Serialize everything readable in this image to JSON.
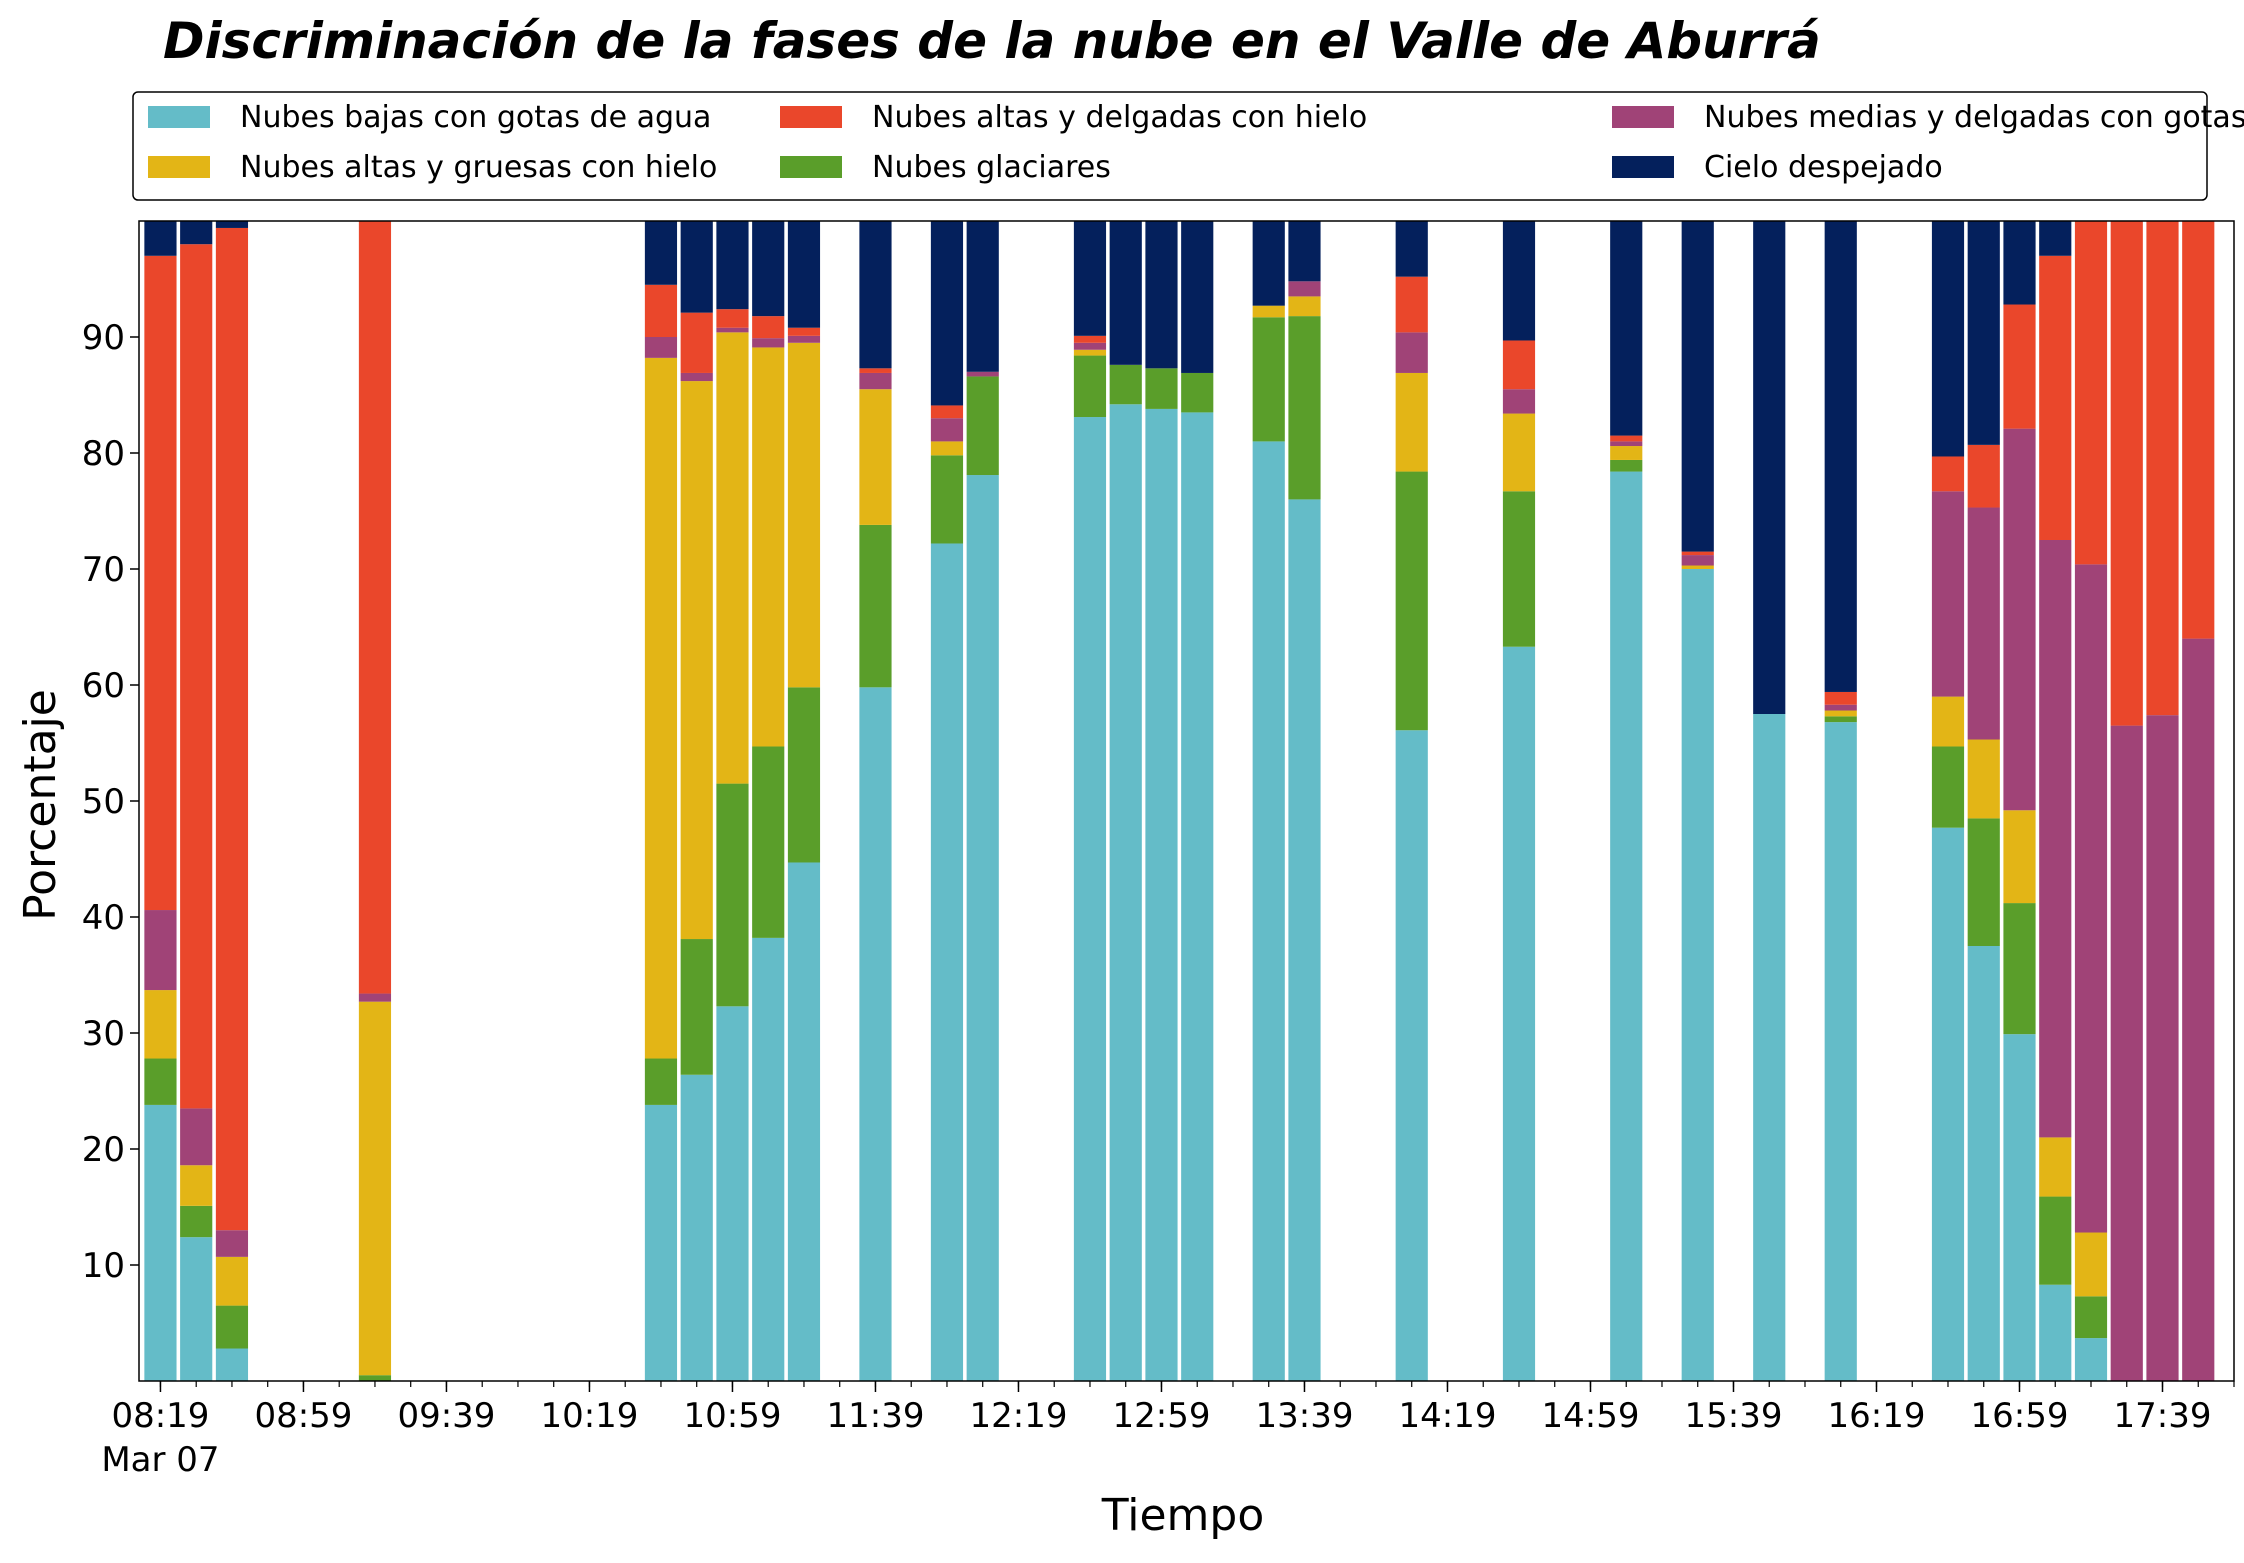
{
  "chart_data": {
    "type": "bar",
    "stacked": true,
    "title": "Discriminación de la fases de la nube en el Valle de Aburrá",
    "xlabel": "Tiempo",
    "ylabel": "Porcentaje",
    "ylim": [
      0,
      100
    ],
    "yticks": [
      10,
      20,
      30,
      40,
      50,
      60,
      70,
      80,
      90
    ],
    "xlim_minutes_from_0819": [
      -6,
      580
    ],
    "xticks": [
      {
        "minutes": 0,
        "label": "08:19",
        "sublabel": "Mar 07"
      },
      {
        "minutes": 40,
        "label": "08:59"
      },
      {
        "minutes": 80,
        "label": "09:39"
      },
      {
        "minutes": 120,
        "label": "10:19"
      },
      {
        "minutes": 160,
        "label": "10:59"
      },
      {
        "minutes": 200,
        "label": "11:39"
      },
      {
        "minutes": 240,
        "label": "12:19"
      },
      {
        "minutes": 280,
        "label": "12:59"
      },
      {
        "minutes": 320,
        "label": "13:39"
      },
      {
        "minutes": 360,
        "label": "14:19"
      },
      {
        "minutes": 400,
        "label": "14:59"
      },
      {
        "minutes": 440,
        "label": "15:39"
      },
      {
        "minutes": 480,
        "label": "16:19"
      },
      {
        "minutes": 520,
        "label": "16:59"
      },
      {
        "minutes": 560,
        "label": "17:39"
      }
    ],
    "minor_tick_step_minutes": 10,
    "bar_width_minutes": 9,
    "legend": {
      "placement": "top, above plot",
      "columns": 3
    },
    "series": [
      {
        "name": "Nubes bajas con gotas de agua",
        "color": "#64bcc8"
      },
      {
        "name": "Nubes glaciares",
        "color": "#5a9e2a"
      },
      {
        "name": "Nubes altas y gruesas con hielo",
        "color": "#e3b516"
      },
      {
        "name": "Nubes medias y delgadas con gotas de agua",
        "color": "#a04377"
      },
      {
        "name": "Nubes altas y delgadas con hielo",
        "color": "#ea472b"
      },
      {
        "name": "Cielo despejado",
        "color": "#04205c"
      }
    ],
    "legend_order": [
      0,
      2,
      4,
      1,
      3,
      5
    ],
    "time_column": "Tiempo",
    "bars": [
      {
        "time": "08:19",
        "values": [
          23.8,
          4.0,
          5.9,
          6.9,
          56.4,
          3.0
        ]
      },
      {
        "time": "08:29",
        "values": [
          12.4,
          2.7,
          3.5,
          4.9,
          74.5,
          2.0
        ]
      },
      {
        "time": "08:39",
        "values": [
          2.8,
          3.7,
          4.2,
          2.3,
          86.4,
          0.6
        ]
      },
      {
        "time": "08:59",
        "values": [
          0.0,
          0.0,
          0.0,
          0.0,
          0.0,
          0.0
        ]
      },
      {
        "time": "09:19",
        "values": [
          0.0,
          0.5,
          32.2,
          0.7,
          66.6,
          0.0
        ]
      },
      {
        "time": "10:39",
        "values": [
          23.8,
          4.0,
          60.4,
          1.8,
          4.5,
          5.5
        ]
      },
      {
        "time": "10:49",
        "values": [
          26.4,
          11.7,
          48.1,
          0.7,
          5.2,
          7.9
        ]
      },
      {
        "time": "10:59",
        "values": [
          32.3,
          19.2,
          38.9,
          0.4,
          1.6,
          7.6
        ]
      },
      {
        "time": "11:09",
        "values": [
          38.2,
          16.5,
          34.4,
          0.8,
          1.9,
          8.2
        ]
      },
      {
        "time": "11:19",
        "values": [
          44.7,
          15.1,
          29.7,
          0.6,
          0.7,
          9.2
        ]
      },
      {
        "time": "11:39",
        "values": [
          59.8,
          14.0,
          11.7,
          1.4,
          0.4,
          12.7
        ]
      },
      {
        "time": "11:59",
        "values": [
          72.2,
          7.6,
          1.2,
          2.0,
          1.1,
          15.9
        ]
      },
      {
        "time": "12:09",
        "values": [
          78.1,
          8.5,
          0.0,
          0.4,
          0.0,
          13.0
        ]
      },
      {
        "time": "12:39",
        "values": [
          83.1,
          5.3,
          0.5,
          0.6,
          0.6,
          9.9
        ]
      },
      {
        "time": "12:49",
        "values": [
          84.2,
          3.4,
          0.0,
          0.0,
          0.0,
          12.4
        ]
      },
      {
        "time": "12:59",
        "values": [
          83.8,
          3.5,
          0.0,
          0.0,
          0.0,
          12.7
        ]
      },
      {
        "time": "13:09",
        "values": [
          83.5,
          3.4,
          0.0,
          0.0,
          0.0,
          13.1
        ]
      },
      {
        "time": "13:29",
        "values": [
          81.0,
          10.7,
          1.0,
          0.0,
          0.0,
          7.3
        ]
      },
      {
        "time": "13:39",
        "values": [
          76.0,
          15.8,
          1.7,
          1.3,
          0.0,
          5.2
        ]
      },
      {
        "time": "14:09",
        "values": [
          56.1,
          22.3,
          8.5,
          3.5,
          4.8,
          4.8
        ]
      },
      {
        "time": "14:39",
        "values": [
          63.3,
          13.4,
          6.7,
          2.1,
          4.2,
          10.3
        ]
      },
      {
        "time": "15:09",
        "values": [
          78.4,
          1.0,
          1.2,
          0.4,
          0.5,
          18.5
        ]
      },
      {
        "time": "15:29",
        "values": [
          70.0,
          0.0,
          0.3,
          0.9,
          0.3,
          28.5
        ]
      },
      {
        "time": "15:49",
        "values": [
          57.5,
          0.0,
          0.0,
          0.0,
          0.0,
          42.5
        ]
      },
      {
        "time": "16:09",
        "values": [
          56.8,
          0.5,
          0.5,
          0.5,
          1.1,
          40.6
        ]
      },
      {
        "time": "16:39",
        "values": [
          47.7,
          7.0,
          4.3,
          17.7,
          3.0,
          20.3
        ]
      },
      {
        "time": "16:49",
        "values": [
          37.5,
          11.0,
          6.8,
          20.0,
          5.4,
          19.3
        ]
      },
      {
        "time": "16:59",
        "values": [
          29.9,
          11.3,
          8.0,
          32.9,
          10.7,
          7.2
        ]
      },
      {
        "time": "17:09",
        "values": [
          8.3,
          7.6,
          5.1,
          51.5,
          24.5,
          3.0
        ]
      },
      {
        "time": "17:19",
        "values": [
          3.7,
          3.6,
          5.5,
          57.6,
          29.6,
          0.0
        ]
      },
      {
        "time": "17:29",
        "values": [
          0.0,
          0.0,
          0.0,
          56.5,
          43.5,
          0.0
        ]
      },
      {
        "time": "17:39",
        "values": [
          0.0,
          0.0,
          0.0,
          57.4,
          42.6,
          0.0
        ]
      },
      {
        "time": "17:49",
        "values": [
          0.0,
          0.0,
          0.0,
          64.0,
          36.0,
          0.0
        ]
      }
    ]
  }
}
